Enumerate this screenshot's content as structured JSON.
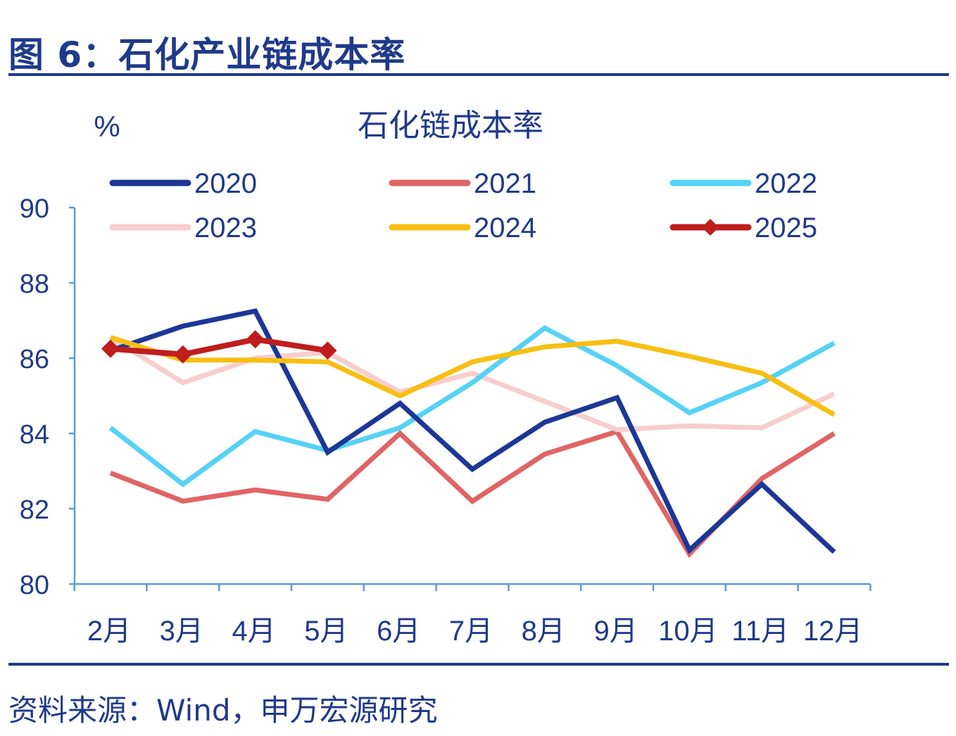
{
  "figure": {
    "title": "图 6：石化产业链成本率",
    "source": "资料来源：Wind，申万宏源研究"
  },
  "chart_data": {
    "type": "line",
    "title": "石化链成本率",
    "ylabel": "%",
    "xlabel": "",
    "ylim": [
      80,
      90
    ],
    "yticks": [
      80,
      82,
      84,
      86,
      88,
      90
    ],
    "categories": [
      "2月",
      "3月",
      "4月",
      "5月",
      "6月",
      "7月",
      "8月",
      "9月",
      "10月",
      "11月",
      "12月"
    ],
    "grid": false,
    "legend_position": "top",
    "series": [
      {
        "name": "2020",
        "color": "#1c3796",
        "marker": "none",
        "values": [
          86.2,
          86.85,
          87.25,
          83.5,
          84.8,
          83.05,
          84.3,
          84.95,
          80.9,
          82.65,
          80.85
        ]
      },
      {
        "name": "2021",
        "color": "#e06464",
        "marker": "none",
        "values": [
          82.95,
          82.2,
          82.5,
          82.25,
          84.0,
          82.2,
          83.45,
          84.05,
          80.8,
          82.8,
          84.0
        ]
      },
      {
        "name": "2022",
        "color": "#55d2f5",
        "marker": "none",
        "values": [
          84.15,
          82.65,
          84.05,
          83.55,
          84.15,
          85.35,
          86.8,
          85.8,
          84.55,
          85.35,
          86.4
        ]
      },
      {
        "name": "2023",
        "color": "#f8cdcd",
        "marker": "none",
        "values": [
          86.55,
          85.35,
          86.0,
          86.15,
          85.1,
          85.6,
          84.85,
          84.1,
          84.2,
          84.15,
          85.05
        ]
      },
      {
        "name": "2024",
        "color": "#f7bf12",
        "marker": "none",
        "values": [
          86.55,
          85.95,
          85.95,
          85.9,
          85.0,
          85.9,
          86.3,
          86.45,
          86.05,
          85.6,
          84.5
        ]
      },
      {
        "name": "2025",
        "color": "#c01d1d",
        "marker": "diamond",
        "values": [
          86.25,
          86.1,
          86.5,
          86.2,
          null,
          null,
          null,
          null,
          null,
          null,
          null
        ]
      }
    ]
  }
}
